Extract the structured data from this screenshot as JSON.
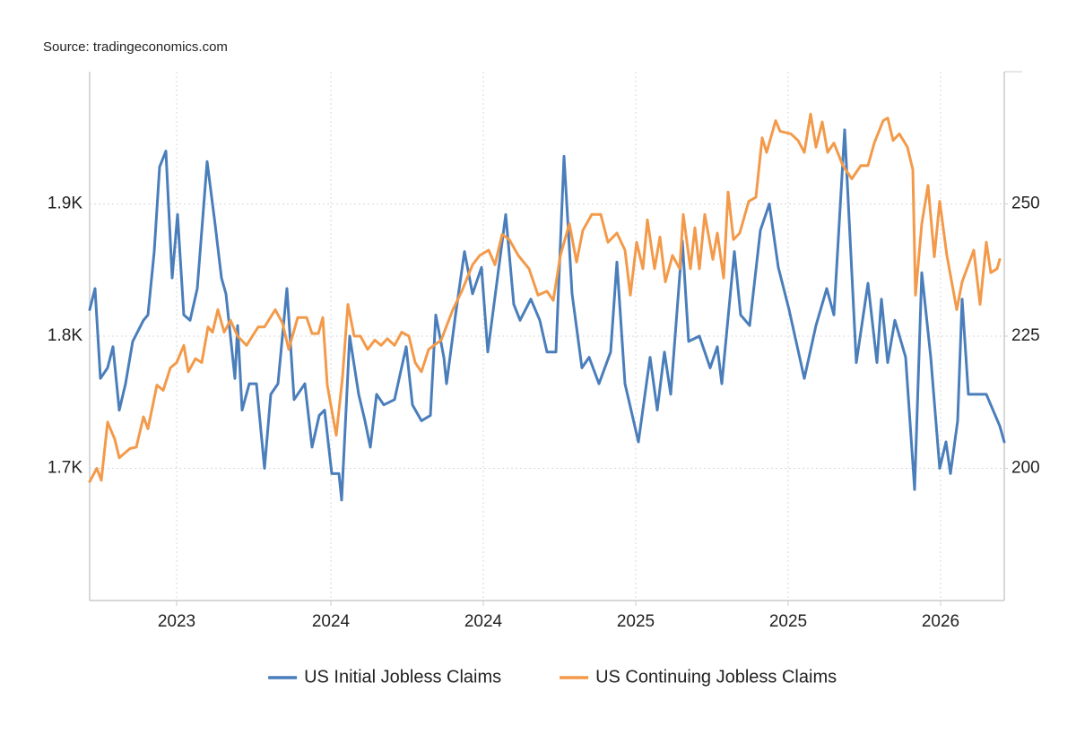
{
  "chart_data": {
    "type": "line",
    "source": "Source: tradingeconomics.com",
    "xlim": [
      0,
      1020
    ],
    "xticks": [
      {
        "value": 97,
        "label": "2023"
      },
      {
        "value": 269,
        "label": "2024"
      },
      {
        "value": 439,
        "label": "2024"
      },
      {
        "value": 609,
        "label": "2025"
      },
      {
        "value": 779,
        "label": "2025"
      },
      {
        "value": 949,
        "label": "2026"
      }
    ],
    "ylim": [
      1600,
      2000
    ],
    "yticks": [
      {
        "value": 1700,
        "label": "1.7K"
      },
      {
        "value": 1800,
        "label": "1.8K"
      },
      {
        "value": 1900,
        "label": "1.9K"
      }
    ],
    "y2lim": [
      175,
      275
    ],
    "y2ticks": [
      200,
      225,
      250
    ],
    "grid": true,
    "legend": "bottom",
    "series": [
      {
        "name": "US Initial Jobless Claims",
        "color": "#4a7ebb",
        "axis": "y2",
        "x": [
          0,
          6,
          12,
          20,
          26,
          33,
          40,
          48,
          60,
          65,
          72,
          78,
          85,
          92,
          98,
          105,
          112,
          120,
          131,
          140,
          147,
          152,
          162,
          165,
          170,
          178,
          186,
          195,
          202,
          210,
          220,
          228,
          240,
          248,
          256,
          262,
          270,
          278,
          281,
          290,
          300,
          307,
          313,
          320,
          328,
          340,
          353,
          360,
          370,
          380,
          386,
          395,
          398,
          408,
          418,
          427,
          437,
          444,
          464,
          473,
          480,
          492,
          502,
          510,
          520,
          529,
          538,
          549,
          557,
          568,
          581,
          588,
          597,
          612,
          625,
          633,
          641,
          648,
          661,
          668,
          680,
          692,
          700,
          705,
          719,
          726,
          736,
          748,
          758,
          768,
          780,
          797,
          810,
          822,
          830,
          842,
          855,
          868,
          878,
          883,
          890,
          898,
          910,
          920,
          928,
          938,
          948,
          955,
          960,
          968,
          973,
          980,
          992,
          1000,
          1015,
          1020
        ],
        "values": [
          230,
          234,
          217,
          219,
          223,
          211,
          216,
          224,
          228,
          229,
          241,
          257,
          260,
          236,
          248,
          229,
          228,
          234,
          258,
          246,
          236,
          233,
          217,
          227,
          211,
          216,
          216,
          200,
          214,
          216,
          234,
          213,
          216,
          204,
          210,
          211,
          199,
          199,
          194,
          225,
          214,
          209,
          204,
          214,
          212,
          213,
          223,
          212,
          209,
          210,
          229,
          221,
          216,
          229,
          241,
          233,
          238,
          222,
          248,
          231,
          228,
          232,
          228,
          222,
          222,
          259,
          233,
          219,
          221,
          216,
          222,
          239,
          216,
          205,
          221,
          211,
          222,
          214,
          243,
          224,
          225,
          219,
          223,
          216,
          241,
          229,
          227,
          245,
          250,
          238,
          230,
          217,
          227,
          234,
          229,
          264,
          220,
          235,
          220,
          232,
          220,
          228,
          221,
          196,
          237,
          221,
          200,
          205,
          199,
          209,
          232,
          214,
          214,
          214,
          208,
          205
        ]
      },
      {
        "name": "US Continuing Jobless Claims",
        "color": "#f39a4a",
        "x": [
          0,
          8,
          13,
          20,
          28,
          33,
          45,
          52,
          60,
          65,
          75,
          82,
          90,
          97,
          105,
          110,
          118,
          125,
          132,
          137,
          143,
          150,
          157,
          165,
          175,
          188,
          195,
          207,
          215,
          222,
          232,
          242,
          248,
          255,
          260,
          265,
          275,
          282,
          288,
          295,
          302,
          310,
          318,
          325,
          332,
          340,
          348,
          356,
          363,
          370,
          378,
          392,
          405,
          415,
          427,
          435,
          445,
          452,
          460,
          468,
          478,
          490,
          500,
          510,
          517,
          525,
          535,
          543,
          550,
          560,
          570,
          578,
          588,
          597,
          603,
          610,
          617,
          622,
          630,
          636,
          642,
          650,
          658,
          662,
          670,
          675,
          680,
          686,
          695,
          700,
          707,
          712,
          718,
          725,
          735,
          743,
          750,
          755,
          765,
          770,
          782,
          790,
          797,
          804,
          810,
          817,
          823,
          830,
          840,
          850,
          860,
          868,
          875,
          885,
          890,
          896,
          903,
          912,
          918,
          921,
          928,
          935,
          942,
          948,
          956,
          967,
          973,
          986,
          993,
          1000,
          1005,
          1012,
          1015
        ],
        "values": [
          1690,
          1700,
          1691,
          1735,
          1722,
          1708,
          1715,
          1716,
          1739,
          1730,
          1763,
          1759,
          1776,
          1780,
          1793,
          1773,
          1783,
          1780,
          1807,
          1803,
          1820,
          1803,
          1812,
          1800,
          1793,
          1807,
          1807,
          1820,
          1810,
          1790,
          1814,
          1814,
          1802,
          1802,
          1814,
          1763,
          1725,
          1769,
          1824,
          1800,
          1800,
          1790,
          1797,
          1793,
          1798,
          1793,
          1803,
          1800,
          1780,
          1773,
          1790,
          1797,
          1820,
          1834,
          1854,
          1861,
          1865,
          1854,
          1877,
          1873,
          1861,
          1851,
          1831,
          1834,
          1827,
          1861,
          1885,
          1856,
          1880,
          1892,
          1892,
          1871,
          1878,
          1865,
          1831,
          1871,
          1851,
          1888,
          1851,
          1875,
          1841,
          1861,
          1851,
          1892,
          1851,
          1882,
          1851,
          1892,
          1858,
          1878,
          1844,
          1909,
          1873,
          1878,
          1902,
          1905,
          1950,
          1939,
          1963,
          1955,
          1953,
          1948,
          1939,
          1968,
          1943,
          1962,
          1939,
          1946,
          1929,
          1919,
          1929,
          1929,
          1946,
          1963,
          1965,
          1948,
          1953,
          1943,
          1926,
          1831,
          1885,
          1914,
          1860,
          1902,
          1861,
          1820,
          1841,
          1865,
          1824,
          1871,
          1848,
          1851,
          1858
        ]
      }
    ]
  }
}
